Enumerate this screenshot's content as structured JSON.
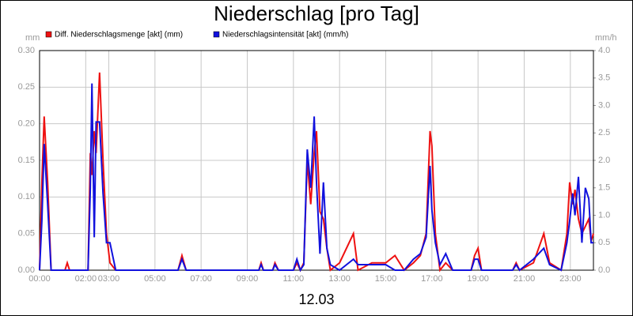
{
  "chart_data": {
    "type": "line",
    "title": "Niederschlag [pro Tag]",
    "xlabel": "12.03",
    "ylabel": "mm",
    "y2label": "mm/h",
    "x": [
      0.0,
      0.1,
      0.2,
      0.35,
      0.5,
      1.1,
      1.2,
      1.3,
      2.1,
      2.2,
      2.27,
      2.37,
      2.45,
      2.6,
      2.75,
      2.9,
      3.05,
      3.3,
      6.0,
      6.17,
      6.35,
      9.5,
      9.6,
      9.7,
      10.1,
      10.2,
      10.35,
      11.0,
      11.15,
      11.3,
      11.45,
      11.6,
      11.75,
      11.9,
      12.0,
      12.15,
      12.3,
      12.45,
      12.6,
      13.0,
      13.6,
      13.8,
      14.4,
      15.0,
      15.4,
      15.8,
      16.2,
      16.5,
      16.75,
      16.92,
      17.0,
      17.15,
      17.35,
      17.6,
      17.9,
      18.7,
      18.85,
      19.0,
      19.15,
      20.5,
      20.65,
      20.8,
      21.4,
      21.85,
      22.1,
      22.6,
      22.85,
      22.97,
      23.1,
      23.2,
      23.35,
      23.5,
      23.65,
      23.8,
      23.9,
      24.0
    ],
    "series": [
      {
        "name": "Diff. Niederschlagsmenge [akt] (mm)",
        "color": "#ee1111",
        "values": [
          0,
          0.12,
          0.21,
          0.12,
          0,
          0,
          0.01,
          0,
          0,
          0.16,
          0.13,
          0.19,
          0.16,
          0.27,
          0.15,
          0.05,
          0.01,
          0,
          0,
          0.02,
          0,
          0,
          0.01,
          0,
          0,
          0.01,
          0,
          0,
          0.01,
          0,
          0.01,
          0.15,
          0.09,
          0.16,
          0.19,
          0.08,
          0.07,
          0.03,
          0,
          0.01,
          0.05,
          0,
          0.01,
          0.01,
          0.02,
          0,
          0.01,
          0.02,
          0.05,
          0.19,
          0.17,
          0.05,
          0,
          0.01,
          0,
          0,
          0.02,
          0.03,
          0,
          0,
          0.01,
          0,
          0.01,
          0.05,
          0.01,
          0,
          0.05,
          0.12,
          0.09,
          0.11,
          0.07,
          0.05,
          0.06,
          0.07,
          0.04,
          0.05
        ]
      },
      {
        "name": "Niederschlagsintensität [akt] (mm/h)",
        "color": "#1111dd",
        "axis": "y2",
        "values": [
          0,
          0.9,
          2.3,
          1.2,
          0,
          0,
          0,
          0,
          0,
          1.5,
          3.4,
          0.6,
          2.7,
          2.7,
          1.4,
          0.5,
          0.5,
          0,
          0,
          0.2,
          0,
          0,
          0.1,
          0,
          0,
          0.1,
          0,
          0,
          0.2,
          0,
          0.1,
          2.2,
          1.5,
          2.8,
          1.6,
          0.3,
          1.6,
          0.4,
          0.1,
          0,
          0.2,
          0.1,
          0.1,
          0.1,
          0,
          0,
          0.2,
          0.3,
          0.6,
          1.9,
          1.1,
          0.5,
          0.1,
          0.3,
          0,
          0,
          0.2,
          0.2,
          0,
          0,
          0.1,
          0,
          0.2,
          0.4,
          0.1,
          0,
          0.5,
          0.9,
          1.4,
          1.0,
          1.7,
          0.5,
          1.5,
          1.3,
          0.5,
          0.5
        ]
      }
    ],
    "xlim": [
      0,
      24
    ],
    "xticks": [
      {
        "value": 0,
        "label": "00:00"
      },
      {
        "value": 2,
        "label": "02:00"
      },
      {
        "value": 3,
        "label": "03:00"
      },
      {
        "value": 5,
        "label": "05:00"
      },
      {
        "value": 7,
        "label": "07:00"
      },
      {
        "value": 9,
        "label": "09:00"
      },
      {
        "value": 11,
        "label": "11:00"
      },
      {
        "value": 13,
        "label": "13:00"
      },
      {
        "value": 15,
        "label": "15:00"
      },
      {
        "value": 17,
        "label": "17:00"
      },
      {
        "value": 19,
        "label": "19:00"
      },
      {
        "value": 21,
        "label": "21:00"
      },
      {
        "value": 23,
        "label": "23:00"
      }
    ],
    "ylim": [
      0,
      0.3
    ],
    "yticks": [
      {
        "value": 0,
        "label": "0.00"
      },
      {
        "value": 0.05,
        "label": "0.05"
      },
      {
        "value": 0.1,
        "label": "0.10"
      },
      {
        "value": 0.15,
        "label": "0.15"
      },
      {
        "value": 0.2,
        "label": "0.20"
      },
      {
        "value": 0.25,
        "label": "0.25"
      },
      {
        "value": 0.3,
        "label": "0.30"
      }
    ],
    "y2lim": [
      0,
      4
    ],
    "y2ticks": [
      {
        "value": 0,
        "label": "0.0"
      },
      {
        "value": 0.5,
        "label": "0.5"
      },
      {
        "value": 1,
        "label": "1.0"
      },
      {
        "value": 1.5,
        "label": "1.5"
      },
      {
        "value": 2,
        "label": "2.0"
      },
      {
        "value": 2.5,
        "label": "2.5"
      },
      {
        "value": 3,
        "label": "3.0"
      },
      {
        "value": 3.5,
        "label": "3.5"
      },
      {
        "value": 4,
        "label": "4.0"
      }
    ],
    "grid": true
  }
}
